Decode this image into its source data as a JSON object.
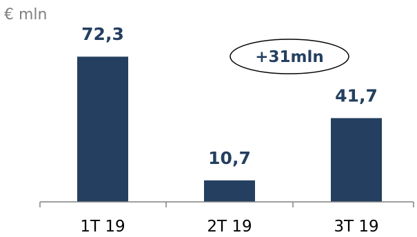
{
  "chart_data": {
    "type": "bar",
    "unit_label": "€ mln",
    "categories": [
      "1T 19",
      "2T 19",
      "3T 19"
    ],
    "values": [
      72.3,
      10.7,
      41.7
    ],
    "value_labels": [
      "72,3",
      "10,7",
      "41,7"
    ],
    "annotation": "+31mln",
    "ylim": [
      0,
      80
    ],
    "grid": false,
    "legend": "none",
    "colors": {
      "bar": "#243f60",
      "value_text": "#243f60",
      "axis": "#808080",
      "unit_text": "#808080",
      "tick_text": "#000000"
    }
  }
}
